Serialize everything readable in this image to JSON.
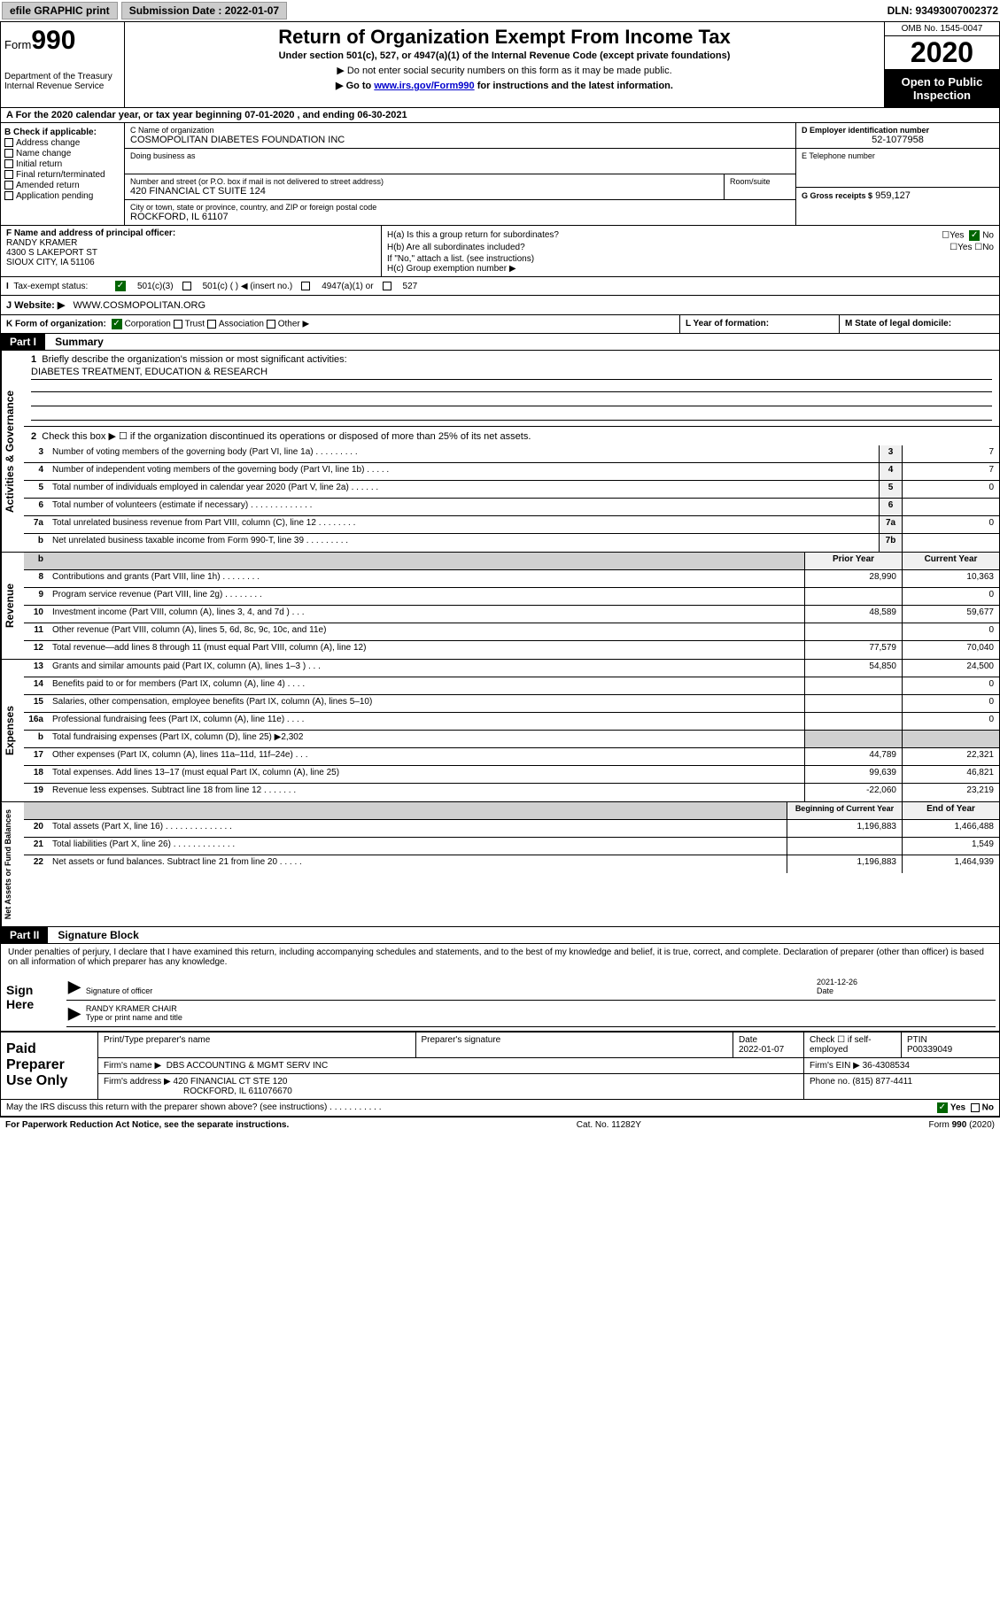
{
  "top": {
    "efile": "efile GRAPHIC print",
    "submission_label": "Submission Date : 2022-01-07",
    "dln": "DLN: 93493007002372"
  },
  "header": {
    "form_prefix": "Form",
    "form_num": "990",
    "dept": "Department of the Treasury Internal Revenue Service",
    "title": "Return of Organization Exempt From Income Tax",
    "sub": "Under section 501(c), 527, or 4947(a)(1) of the Internal Revenue Code (except private foundations)",
    "note1": "▶ Do not enter social security numbers on this form as it may be made public.",
    "note2_pre": "▶ Go to ",
    "note2_link": "www.irs.gov/Form990",
    "note2_post": " for instructions and the latest information.",
    "omb": "OMB No. 1545-0047",
    "year": "2020",
    "public": "Open to Public Inspection"
  },
  "row_a": "A For the 2020 calendar year, or tax year beginning 07-01-2020    , and ending 06-30-2021",
  "b": {
    "hdr": "B Check if applicable:",
    "opts": [
      "Address change",
      "Name change",
      "Initial return",
      "Final return/terminated",
      "Amended return",
      "Application pending"
    ]
  },
  "c": {
    "name_lbl": "C Name of organization",
    "name": "COSMOPOLITAN DIABETES FOUNDATION INC",
    "dba_lbl": "Doing business as",
    "addr_lbl": "Number and street (or P.O. box if mail is not delivered to street address)",
    "room_lbl": "Room/suite",
    "addr": "420 FINANCIAL CT SUITE 124",
    "city_lbl": "City or town, state or province, country, and ZIP or foreign postal code",
    "city": "ROCKFORD, IL  61107"
  },
  "d": {
    "ein_lbl": "D Employer identification number",
    "ein": "52-1077958",
    "tel_lbl": "E Telephone number",
    "gross_lbl": "G Gross receipts $",
    "gross": "959,127"
  },
  "f": {
    "lbl": "F Name and address of principal officer:",
    "name": "RANDY KRAMER",
    "addr1": "4300 S LAKEPORT ST",
    "addr2": "SIOUX CITY, IA  51106"
  },
  "h": {
    "a": "H(a)  Is this a group return for subordinates?",
    "b": "H(b)  Are all subordinates included?",
    "b_note": "If \"No,\" attach a list. (see instructions)",
    "c": "H(c)  Group exemption number ▶",
    "yes": "Yes",
    "no": "No"
  },
  "tax": {
    "lbl": "Tax-exempt status:",
    "o1": "501(c)(3)",
    "o2": "501(c) (  ) ◀ (insert no.)",
    "o3": "4947(a)(1) or",
    "o4": "527"
  },
  "j": {
    "lbl": "J  Website: ▶",
    "val": "WWW.COSMOPOLITAN.ORG"
  },
  "k": {
    "lbl": "K Form of organization:",
    "corp": "Corporation",
    "trust": "Trust",
    "assoc": "Association",
    "other": "Other ▶"
  },
  "l": "L Year of formation:",
  "m": "M State of legal domicile:",
  "part1": {
    "hdr": "Part I",
    "title": "Summary"
  },
  "summary": {
    "l1": "Briefly describe the organization's mission or most significant activities:",
    "l1v": "DIABETES TREATMENT, EDUCATION & RESEARCH",
    "l2": "Check this box ▶ ☐  if the organization discontinued its operations or disposed of more than 25% of its net assets.",
    "lines_gov": [
      {
        "n": "3",
        "t": "Number of voting members of the governing body (Part VI, line 1a)   .    .    .    .    .    .    .    .    .",
        "b": "3",
        "v": "7"
      },
      {
        "n": "4",
        "t": "Number of independent voting members of the governing body (Part VI, line 1b)   .    .    .    .    .",
        "b": "4",
        "v": "7"
      },
      {
        "n": "5",
        "t": "Total number of individuals employed in calendar year 2020 (Part V, line 2a)   .    .    .    .    .    .",
        "b": "5",
        "v": "0"
      },
      {
        "n": "6",
        "t": "Total number of volunteers (estimate if necessary)   .    .    .    .    .    .    .    .    .    .    .    .    .",
        "b": "6",
        "v": ""
      },
      {
        "n": "7a",
        "t": "Total unrelated business revenue from Part VIII, column (C), line 12   .    .    .    .    .    .    .    .",
        "b": "7a",
        "v": "0"
      },
      {
        "n": "b",
        "t": "Net unrelated business taxable income from Form 990-T, line 39    .    .    .    .    .    .    .    .    .",
        "b": "7b",
        "v": ""
      }
    ],
    "col_hdr1": "Prior Year",
    "col_hdr2": "Current Year",
    "rev": [
      {
        "n": "8",
        "t": "Contributions and grants (Part VIII, line 1h)   .    .    .    .    .    .    .    .",
        "p": "28,990",
        "c": "10,363"
      },
      {
        "n": "9",
        "t": "Program service revenue (Part VIII, line 2g)   .    .    .    .    .    .    .    .",
        "p": "",
        "c": "0"
      },
      {
        "n": "10",
        "t": "Investment income (Part VIII, column (A), lines 3, 4, and 7d )   .    .    .",
        "p": "48,589",
        "c": "59,677"
      },
      {
        "n": "11",
        "t": "Other revenue (Part VIII, column (A), lines 5, 6d, 8c, 9c, 10c, and 11e)",
        "p": "",
        "c": "0"
      },
      {
        "n": "12",
        "t": "Total revenue—add lines 8 through 11 (must equal Part VIII, column (A), line 12)",
        "p": "77,579",
        "c": "70,040"
      }
    ],
    "exp": [
      {
        "n": "13",
        "t": "Grants and similar amounts paid (Part IX, column (A), lines 1–3 )   .    .    .",
        "p": "54,850",
        "c": "24,500"
      },
      {
        "n": "14",
        "t": "Benefits paid to or for members (Part IX, column (A), line 4)   .    .    .    .",
        "p": "",
        "c": "0"
      },
      {
        "n": "15",
        "t": "Salaries, other compensation, employee benefits (Part IX, column (A), lines 5–10)",
        "p": "",
        "c": "0"
      },
      {
        "n": "16a",
        "t": "Professional fundraising fees (Part IX, column (A), line 11e)   .    .    .    .",
        "p": "",
        "c": "0"
      },
      {
        "n": "b",
        "t": "Total fundraising expenses (Part IX, column (D), line 25) ▶2,302",
        "p": "GRAY",
        "c": "GRAY"
      },
      {
        "n": "17",
        "t": "Other expenses (Part IX, column (A), lines 11a–11d, 11f–24e)   .    .    .",
        "p": "44,789",
        "c": "22,321"
      },
      {
        "n": "18",
        "t": "Total expenses. Add lines 13–17 (must equal Part IX, column (A), line 25)",
        "p": "99,639",
        "c": "46,821"
      },
      {
        "n": "19",
        "t": "Revenue less expenses. Subtract line 18 from line 12   .    .    .    .    .    .    .",
        "p": "-22,060",
        "c": "23,219"
      }
    ],
    "col_hdr3": "Beginning of Current Year",
    "col_hdr4": "End of Year",
    "net": [
      {
        "n": "20",
        "t": "Total assets (Part X, line 16)   .    .    .    .    .    .    .    .    .    .    .    .    .    .",
        "p": "1,196,883",
        "c": "1,466,488"
      },
      {
        "n": "21",
        "t": "Total liabilities (Part X, line 26)   .    .    .    .    .    .    .    .    .    .    .    .    .",
        "p": "",
        "c": "1,549"
      },
      {
        "n": "22",
        "t": "Net assets or fund balances. Subtract line 21 from line 20   .    .    .    .    .",
        "p": "1,196,883",
        "c": "1,464,939"
      }
    ],
    "side_gov": "Activities & Governance",
    "side_rev": "Revenue",
    "side_exp": "Expenses",
    "side_net": "Net Assets or Fund Balances"
  },
  "part2": {
    "hdr": "Part II",
    "title": "Signature Block"
  },
  "sig": {
    "text": "Under penalties of perjury, I declare that I have examined this return, including accompanying schedules and statements, and to the best of my knowledge and belief, it is true, correct, and complete. Declaration of preparer (other than officer) is based on all information of which preparer has any knowledge.",
    "here": "Sign Here",
    "sig_lbl": "Signature of officer",
    "date_lbl": "Date",
    "date": "2021-12-26",
    "name": "RANDY KRAMER  CHAIR",
    "name_lbl": "Type or print name and title"
  },
  "prep": {
    "hdr": "Paid Preparer Use Only",
    "r1c1_lbl": "Print/Type preparer's name",
    "r1c2_lbl": "Preparer's signature",
    "r1c3_lbl": "Date",
    "r1c3": "2022-01-07",
    "r1c4_lbl": "Check ☐ if self-employed",
    "r1c5_lbl": "PTIN",
    "r1c5": "P00339049",
    "firm_lbl": "Firm's name     ▶",
    "firm": "DBS ACCOUNTING & MGMT SERV INC",
    "ein_lbl": "Firm's EIN ▶",
    "ein": "36-4308534",
    "addr_lbl": "Firm's address ▶",
    "addr1": "420 FINANCIAL CT STE 120",
    "addr2": "ROCKFORD, IL  611076670",
    "phone_lbl": "Phone no.",
    "phone": "(815) 877-4411"
  },
  "discuss": {
    "text": "May the IRS discuss this return with the preparer shown above? (see instructions)   .    .    .    .    .    .    .    .    .    .    .",
    "yes": "Yes",
    "no": "No"
  },
  "footer": {
    "left": "For Paperwork Reduction Act Notice, see the separate instructions.",
    "mid": "Cat. No. 11282Y",
    "right": "Form 990 (2020)"
  }
}
